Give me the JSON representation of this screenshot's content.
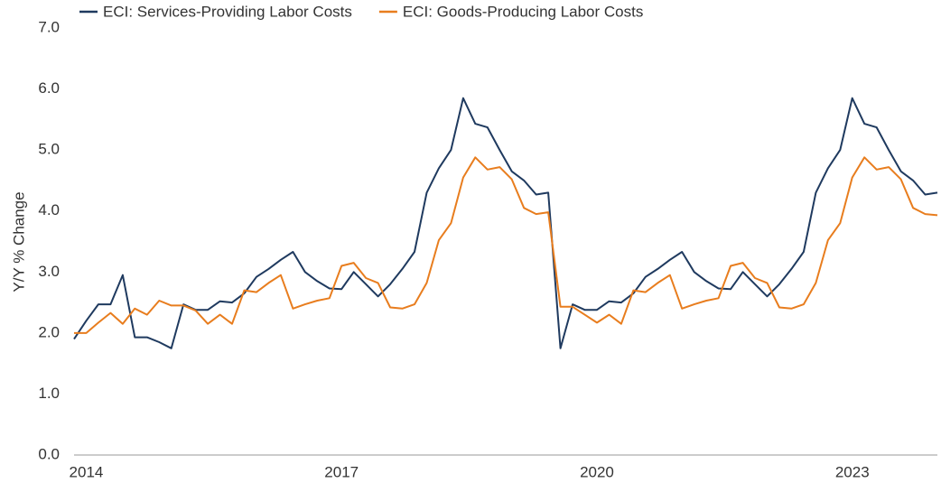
{
  "chart_data": {
    "type": "line",
    "y_label": "Y/Y % Change",
    "categories": [
      null,
      "2014",
      null,
      null,
      null,
      null,
      null,
      null,
      null,
      null,
      null,
      null,
      null,
      null,
      null,
      null,
      null,
      null,
      null,
      null,
      null,
      null,
      "2017",
      null,
      null,
      null,
      null,
      null,
      null,
      null,
      null,
      null,
      null,
      null,
      null,
      null,
      null,
      null,
      null,
      null,
      null,
      null,
      null,
      "2020",
      null,
      null,
      null,
      null,
      null,
      null,
      null,
      null,
      null,
      null,
      null,
      null,
      null,
      null,
      null,
      null,
      null,
      null,
      null,
      null,
      "2023",
      null,
      null,
      null,
      null,
      null,
      null,
      null
    ],
    "series": [
      {
        "name": "ECI: Services-Providing Labor Costs",
        "color": "#1f3a5f",
        "values": [
          1.9,
          2.2,
          2.47,
          2.47,
          2.95,
          1.93,
          1.93,
          1.85,
          1.75,
          2.47,
          2.38,
          2.38,
          2.52,
          2.5,
          2.65,
          2.92,
          3.05,
          3.2,
          3.33,
          3.0,
          2.85,
          2.73,
          2.72,
          3.0,
          2.8,
          2.6,
          2.8,
          3.05,
          3.33,
          4.3,
          4.7,
          5.0,
          5.85,
          5.43,
          5.37,
          5.0,
          4.65,
          4.5,
          4.27,
          4.3,
          1.75,
          2.47,
          2.38,
          2.38,
          2.52,
          2.5,
          2.65,
          2.92,
          3.05,
          3.2,
          3.33,
          3.0,
          2.85,
          2.73,
          2.72,
          3.0,
          2.8,
          2.6,
          2.8,
          3.05,
          3.33,
          4.3,
          4.7,
          5.0,
          5.85,
          5.43,
          5.37,
          5.0,
          4.65,
          4.5,
          4.27,
          4.3
        ]
      },
      {
        "name": "ECI: Goods-Producing Labor Costs",
        "color": "#e87d1e",
        "values": [
          2.0,
          2.0,
          2.17,
          2.33,
          2.15,
          2.4,
          2.3,
          2.53,
          2.45,
          2.45,
          2.37,
          2.15,
          2.3,
          2.15,
          2.7,
          2.67,
          2.82,
          2.95,
          2.4,
          2.47,
          2.53,
          2.57,
          3.1,
          3.15,
          2.9,
          2.82,
          2.42,
          2.4,
          2.47,
          2.82,
          3.52,
          3.8,
          4.55,
          4.88,
          4.68,
          4.72,
          4.52,
          4.05,
          3.95,
          3.98,
          2.43,
          2.43,
          2.3,
          2.17,
          2.3,
          2.15,
          2.7,
          2.67,
          2.82,
          2.95,
          2.4,
          2.47,
          2.53,
          2.57,
          3.1,
          3.15,
          2.9,
          2.82,
          2.42,
          2.4,
          2.47,
          2.82,
          3.52,
          3.8,
          4.55,
          4.88,
          4.68,
          4.72,
          4.52,
          4.05,
          3.95,
          3.93
        ]
      }
    ],
    "ylim": [
      0,
      7
    ],
    "yticks": [
      {
        "value": 0,
        "label": "0.0"
      },
      {
        "value": 1,
        "label": "1.0"
      },
      {
        "value": 2,
        "label": "2.0"
      },
      {
        "value": 3,
        "label": "3.0"
      },
      {
        "value": 4,
        "label": "4.0"
      },
      {
        "value": 5,
        "label": "5.0"
      },
      {
        "value": 6,
        "label": "6.0"
      },
      {
        "value": 7,
        "label": "7.0"
      }
    ],
    "legend": "top-left",
    "grid": false
  }
}
